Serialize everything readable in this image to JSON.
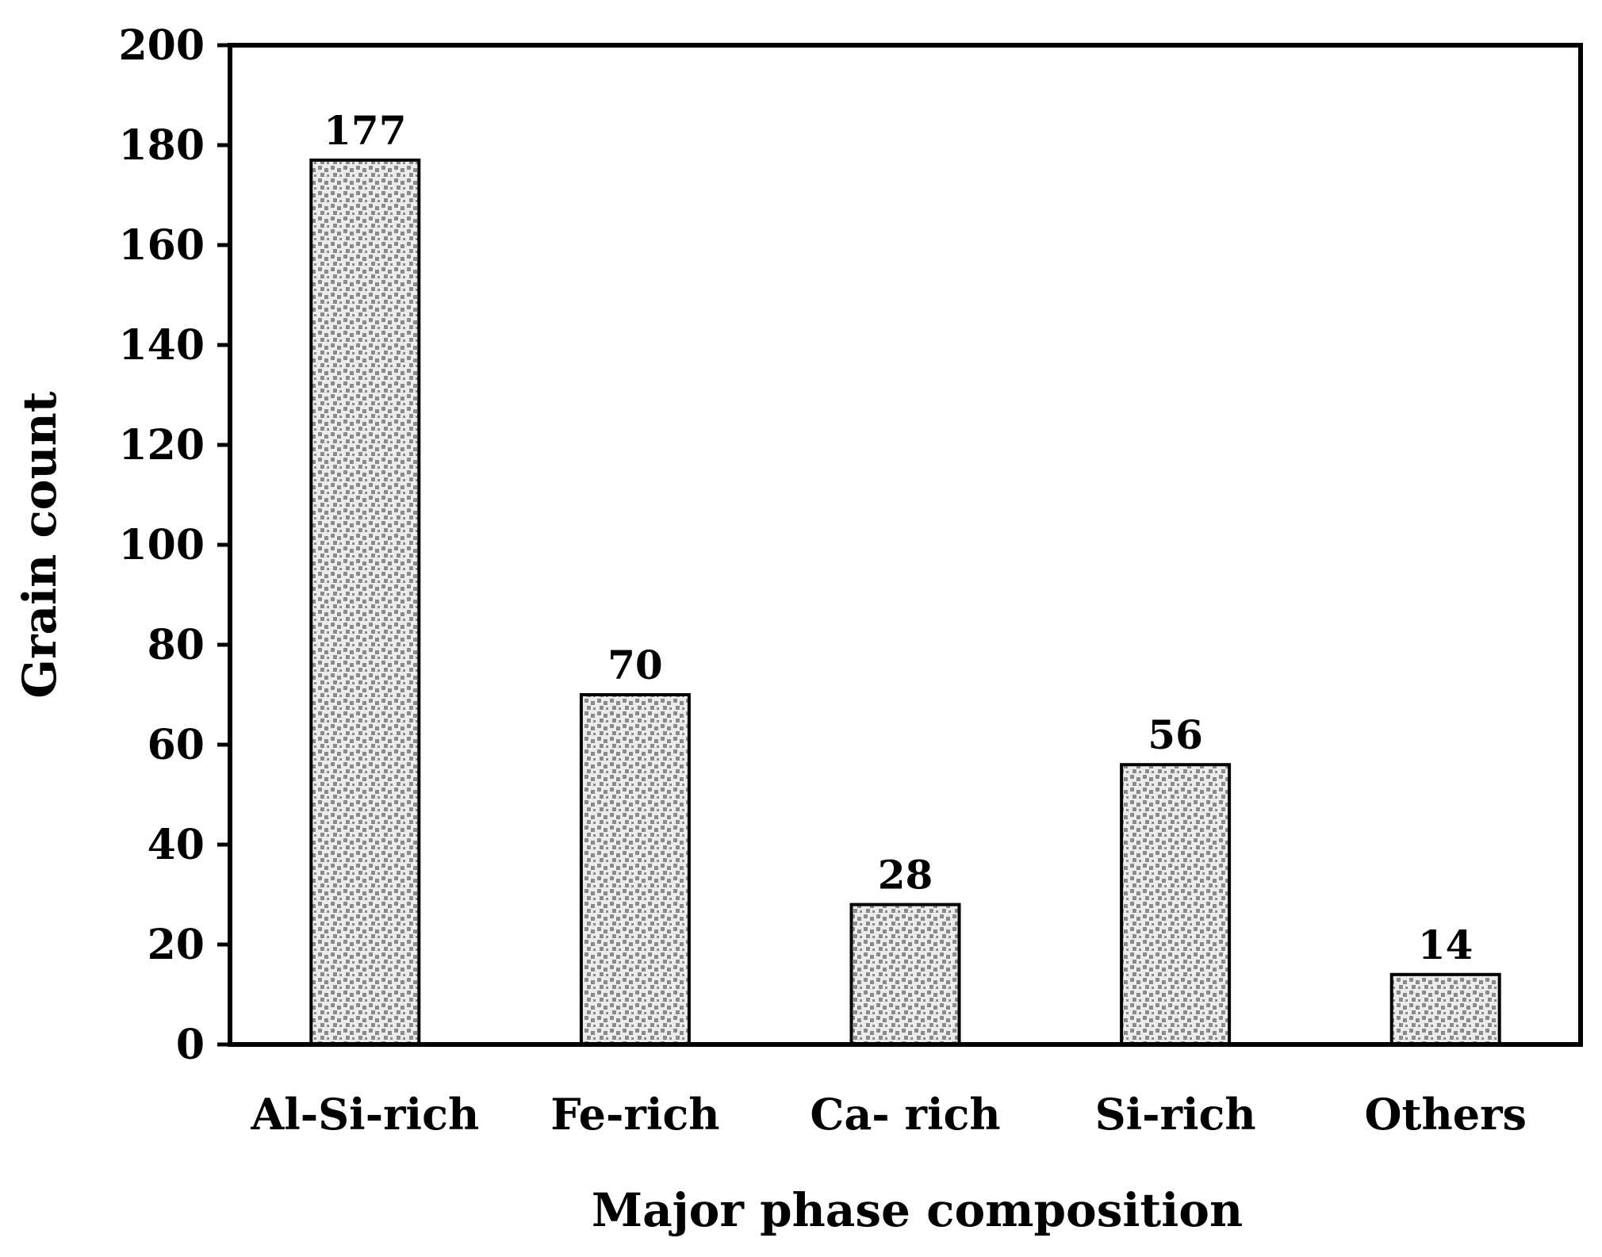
{
  "chart_data": {
    "type": "bar",
    "categories": [
      "Al-Si-rich",
      "Fe-rich",
      "Ca- rich",
      "Si-rich",
      "Others"
    ],
    "values": [
      177,
      70,
      28,
      56,
      14
    ],
    "data_labels": [
      "177",
      "70",
      "28",
      "56",
      "14"
    ],
    "title": "",
    "xlabel": "Major phase composition",
    "ylabel": "Grain count",
    "ylim": [
      0,
      200
    ],
    "yticks": [
      0,
      20,
      40,
      60,
      80,
      100,
      120,
      140,
      160,
      180,
      200
    ],
    "ytick_labels": [
      "0",
      "20",
      "40",
      "60",
      "80",
      "100",
      "120",
      "140",
      "160",
      "180",
      "200"
    ],
    "grid": false,
    "legend": "none",
    "bar_fill_pattern": "dotted",
    "colors": {
      "bar_background": "#ececec",
      "bar_dots": "#8a8a8a",
      "bar_edge": "#000000",
      "axis": "#000000"
    }
  }
}
